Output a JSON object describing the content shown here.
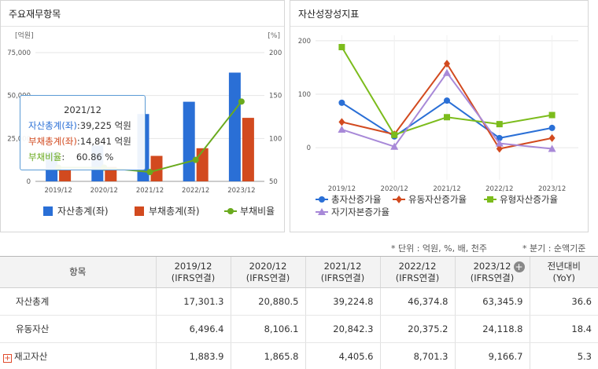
{
  "left_panel": {
    "title": "주요재무항목",
    "tooltip": {
      "date": "2021/12",
      "rows": [
        {
          "label": "자산총계(좌)",
          "value": ":39,225 억원",
          "color": "#2a6fd6"
        },
        {
          "label": "부채총계(좌)",
          "value": ":14,841 억원",
          "color": "#d24a1f"
        },
        {
          "label": "부채비율",
          "value": ":    60.86 %",
          "color": "#6aaa1e"
        }
      ]
    }
  },
  "right_panel": {
    "title": "자산성장성지표"
  },
  "chart_data": [
    {
      "type": "bar",
      "title": "",
      "categories": [
        "2019/12",
        "2020/12",
        "2021/12",
        "2022/12",
        "2023/12"
      ],
      "y_left_unit": "[억원]",
      "y_right_unit": "[%]",
      "y_left_ticks": [
        "0",
        "25,000",
        "50,000",
        "75,000"
      ],
      "y_right_ticks": [
        "50",
        "100",
        "150",
        "200"
      ],
      "ylim_left": [
        0,
        75000
      ],
      "ylim_right": [
        50,
        200
      ],
      "series": [
        {
          "name": "자산총계(좌)",
          "type": "bar",
          "axis": "left",
          "color": "#2a6fd6",
          "values": [
            17301.3,
            20880.5,
            39224.8,
            46374.8,
            63345.9
          ]
        },
        {
          "name": "부채총계(좌)",
          "type": "bar",
          "axis": "left",
          "color": "#d24a1f",
          "values": [
            6900,
            8400,
            14841,
            19300,
            37000
          ]
        },
        {
          "name": "부채비율",
          "type": "line",
          "axis": "right",
          "color": "#6aaa1e",
          "values": [
            66,
            66,
            60.86,
            75,
            143
          ]
        }
      ],
      "legend_position": "bottom",
      "grid": true
    },
    {
      "type": "line",
      "title": "",
      "categories": [
        "2019/12",
        "2020/12",
        "2021/12",
        "2022/12",
        "2023/12"
      ],
      "y_ticks": [
        "0",
        "100",
        "200"
      ],
      "ylim": [
        -60,
        210
      ],
      "series": [
        {
          "name": "총자산증가율",
          "color": "#2a6fd6",
          "marker": "circle",
          "values": [
            84,
            21,
            88,
            18,
            37
          ]
        },
        {
          "name": "유동자산증가율",
          "color": "#d24a1f",
          "marker": "diamond",
          "values": [
            48,
            25,
            157,
            -2,
            18
          ]
        },
        {
          "name": "유형자산증가율",
          "color": "#7cbc1c",
          "marker": "square",
          "values": [
            188,
            24,
            57,
            44,
            61
          ]
        },
        {
          "name": "자기자본증가율",
          "color": "#a889d8",
          "marker": "triangle",
          "values": [
            34,
            2,
            140,
            8,
            -2
          ]
        }
      ],
      "legend_position": "bottom",
      "grid": true
    }
  ],
  "notes": {
    "unit": "* 단위 : 억원, %, 배, 천주",
    "period": "* 분기 : 순액기준"
  },
  "table": {
    "header_item": "항목",
    "columns": [
      {
        "period": "2019/12",
        "basis": "(IFRS연결)"
      },
      {
        "period": "2020/12",
        "basis": "(IFRS연결)"
      },
      {
        "period": "2021/12",
        "basis": "(IFRS연결)"
      },
      {
        "period": "2022/12",
        "basis": "(IFRS연결)"
      },
      {
        "period": "2023/12",
        "basis": "(IFRS연결)"
      }
    ],
    "yoy_header": {
      "line1": "전년대비",
      "line2": "(YoY)"
    },
    "rows": [
      {
        "name": "자산총계",
        "values": [
          "17,301.3",
          "20,880.5",
          "39,224.8",
          "46,374.8",
          "63,345.9"
        ],
        "yoy": "36.6"
      },
      {
        "name": "유동자산",
        "values": [
          "6,496.4",
          "8,106.1",
          "20,842.3",
          "20,375.2",
          "24,118.8"
        ],
        "yoy": "18.4"
      },
      {
        "name": "재고자산",
        "values": [
          "1,883.9",
          "1,865.8",
          "4,405.6",
          "8,701.3",
          "9,166.7"
        ],
        "yoy": "5.3"
      }
    ]
  }
}
